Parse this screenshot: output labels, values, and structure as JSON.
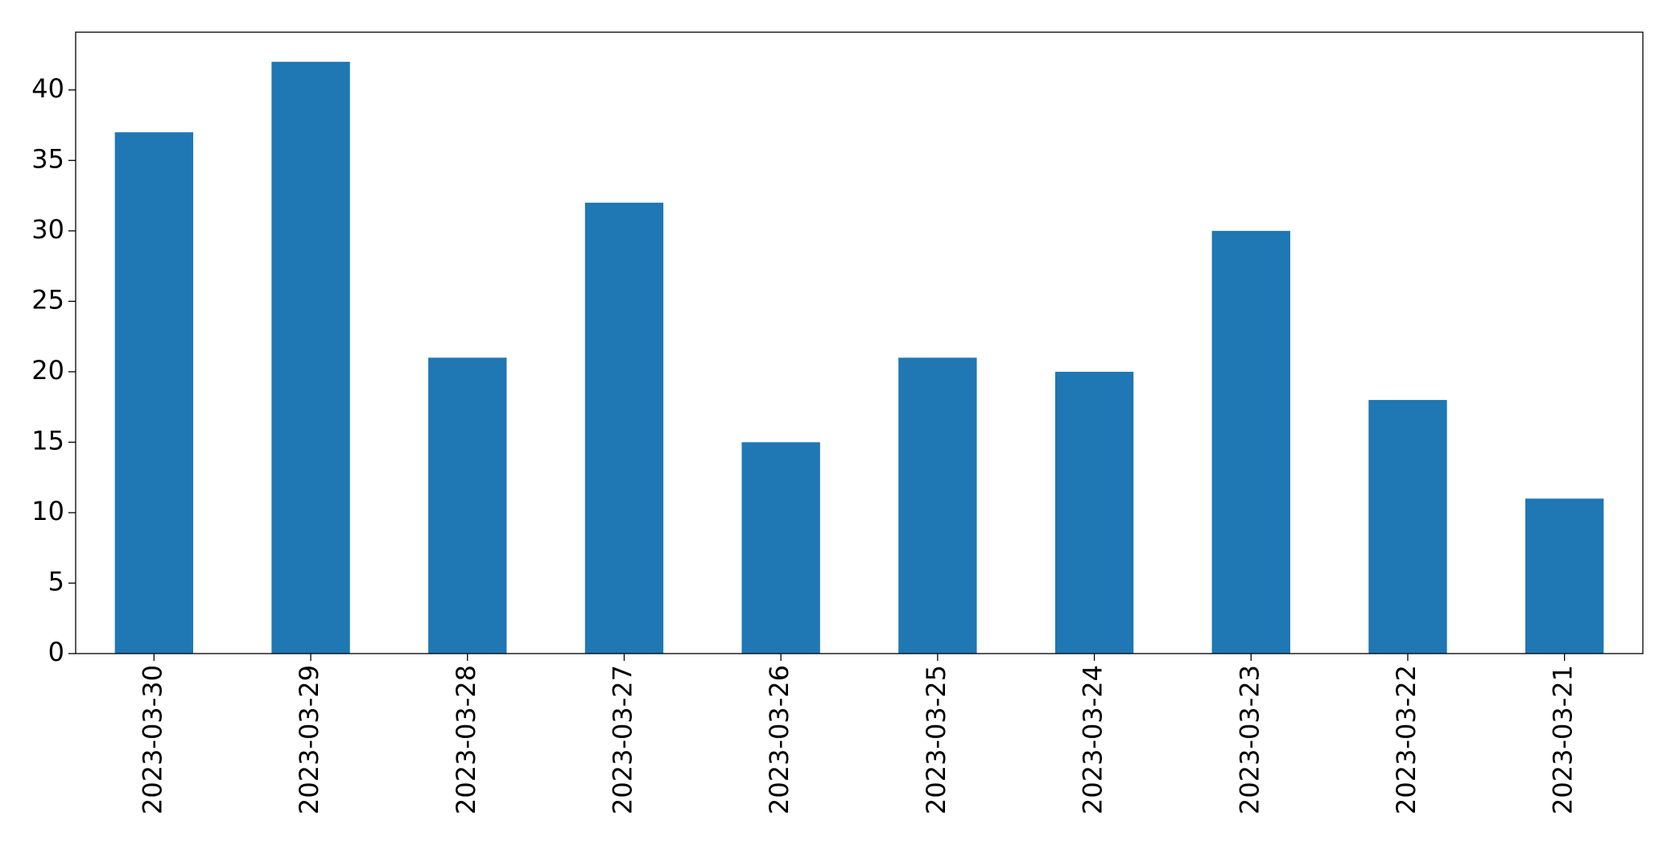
{
  "chart_data": {
    "type": "bar",
    "categories": [
      "2023-03-30",
      "2023-03-29",
      "2023-03-28",
      "2023-03-27",
      "2023-03-26",
      "2023-03-25",
      "2023-03-24",
      "2023-03-23",
      "2023-03-22",
      "2023-03-21"
    ],
    "values": [
      37,
      42,
      21,
      32,
      15,
      21,
      20,
      30,
      18,
      11
    ],
    "color": "#1f77b4",
    "ylim": [
      0,
      44.1
    ],
    "yticks": [
      0,
      5,
      10,
      15,
      20,
      25,
      30,
      35,
      40
    ],
    "grid": false
  }
}
